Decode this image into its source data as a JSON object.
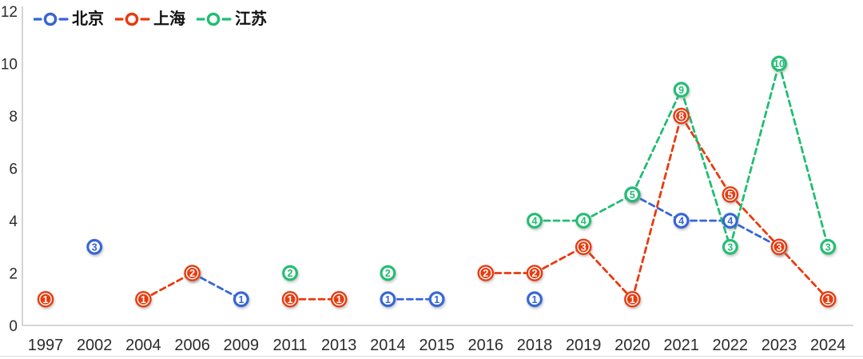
{
  "chart_data": {
    "type": "line",
    "title": "",
    "xlabel": "",
    "ylabel": "",
    "categories": [
      "1997",
      "2002",
      "2004",
      "2006",
      "2009",
      "2011",
      "2013",
      "2014",
      "2015",
      "2016",
      "2018",
      "2019",
      "2020",
      "2021",
      "2022",
      "2023",
      "2024"
    ],
    "series": [
      {
        "name": "北京",
        "color": "#3565d6",
        "marker_style": "ring",
        "values": [
          null,
          3,
          null,
          2,
          1,
          null,
          null,
          1,
          1,
          null,
          1,
          null,
          5,
          4,
          4,
          3,
          null
        ]
      },
      {
        "name": "上海",
        "color": "#e93a0e",
        "marker_style": "filled",
        "values": [
          1,
          null,
          1,
          2,
          null,
          1,
          1,
          null,
          null,
          2,
          2,
          3,
          1,
          8,
          5,
          3,
          1
        ]
      },
      {
        "name": "江苏",
        "color": "#21bd73",
        "marker_style": "ring",
        "values": [
          null,
          null,
          null,
          null,
          null,
          2,
          null,
          2,
          null,
          null,
          4,
          4,
          5,
          9,
          3,
          10,
          3
        ]
      }
    ],
    "yticks": [
      0,
      2,
      4,
      6,
      8,
      10,
      12
    ],
    "ylim": [
      0,
      12
    ],
    "grid": false,
    "line_style": "dashed",
    "legend_position": "top-left",
    "connect_rule": "adjacent-categories-only",
    "marker_draw_order": [
      0,
      2,
      1
    ],
    "data_labels": "value-inside-marker",
    "axis_color": "#c9c9c9",
    "tick_color": "#2b2b2b"
  }
}
